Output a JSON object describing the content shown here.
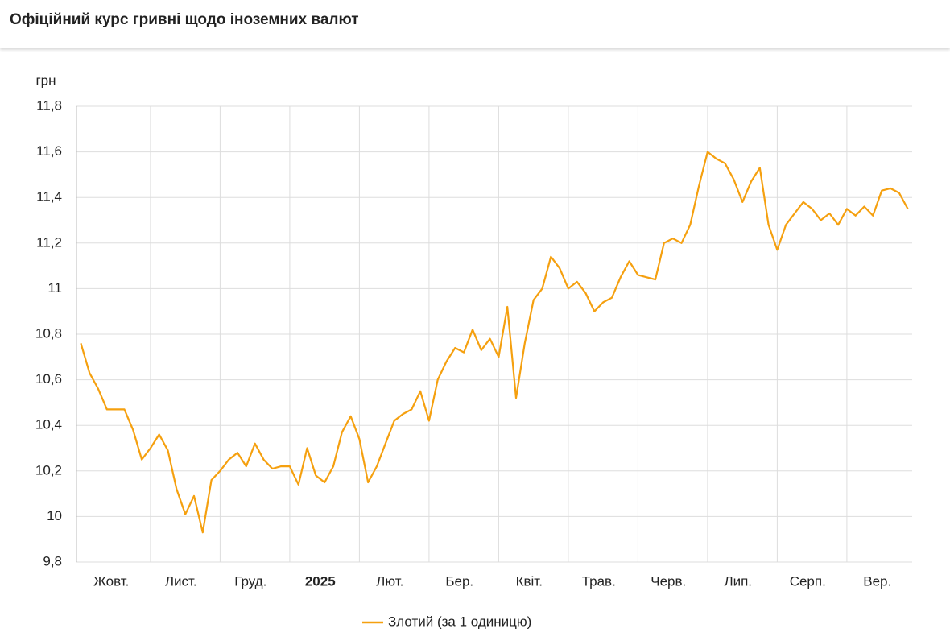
{
  "header": {
    "title": "Офіційний курс гривні щодо іноземних валют"
  },
  "chart_data": {
    "type": "line",
    "y_unit": "грн",
    "categories": [
      null,
      null,
      null,
      null,
      "Жовт.",
      null,
      null,
      null,
      null,
      null,
      null,
      null,
      "Лист.",
      null,
      null,
      null,
      null,
      null,
      null,
      null,
      "Груд.",
      null,
      null,
      null,
      null,
      null,
      null,
      null,
      "2025",
      null,
      null,
      null,
      null,
      null,
      null,
      null,
      "Лют.",
      null,
      null,
      null,
      null,
      null,
      null,
      null,
      "Бер.",
      null,
      null,
      null,
      null,
      null,
      null,
      null,
      "Квіт.",
      null,
      null,
      null,
      null,
      null,
      null,
      null,
      "Трав.",
      null,
      null,
      null,
      null,
      null,
      null,
      null,
      "Черв.",
      null,
      null,
      null,
      null,
      null,
      null,
      null,
      "Лип.",
      null,
      null,
      null,
      null,
      null,
      null,
      null,
      "Серп.",
      null,
      null,
      null,
      null,
      null,
      null,
      null,
      "Вер.",
      null,
      null,
      null
    ],
    "series": [
      {
        "name": "Злотий (за 1 одиницю)",
        "color": "#f5a00f",
        "values": [
          10.76,
          10.63,
          10.56,
          10.47,
          10.47,
          10.47,
          10.38,
          10.25,
          10.3,
          10.36,
          10.29,
          10.12,
          10.01,
          10.09,
          9.93,
          10.16,
          10.2,
          10.25,
          10.28,
          10.22,
          10.32,
          10.25,
          10.21,
          10.22,
          10.22,
          10.14,
          10.3,
          10.18,
          10.15,
          10.22,
          10.37,
          10.44,
          10.34,
          10.15,
          10.22,
          10.32,
          10.42,
          10.45,
          10.47,
          10.55,
          10.42,
          10.6,
          10.68,
          10.74,
          10.72,
          10.82,
          10.73,
          10.78,
          10.7,
          10.92,
          10.52,
          10.76,
          10.95,
          11.0,
          11.14,
          11.09,
          11.0,
          11.03,
          10.98,
          10.9,
          10.94,
          10.96,
          11.05,
          11.12,
          11.06,
          11.05,
          11.04,
          11.2,
          11.22,
          11.2,
          11.28,
          11.45,
          11.6,
          11.57,
          11.55,
          11.48,
          11.38,
          11.47,
          11.53,
          11.28,
          11.17,
          11.28,
          11.33,
          11.38,
          11.35,
          11.3,
          11.33,
          11.28,
          11.35,
          11.32,
          11.36,
          11.32,
          11.43,
          11.44,
          11.42,
          11.35
        ]
      }
    ],
    "ylim": [
      9.8,
      11.8
    ],
    "yticks": [
      {
        "value": 9.8,
        "label": "9,8"
      },
      10,
      {
        "value": 10.2,
        "label": "10,2"
      },
      {
        "value": 10.4,
        "label": "10,4"
      },
      {
        "value": 10.6,
        "label": "10,6"
      },
      {
        "value": 10.8,
        "label": "10,8"
      },
      11,
      {
        "value": 11.2,
        "label": "11,2"
      },
      {
        "value": 11.4,
        "label": "11,4"
      },
      {
        "value": 11.6,
        "label": "11,6"
      },
      {
        "value": 11.8,
        "label": "11,8"
      }
    ],
    "grid": true
  }
}
